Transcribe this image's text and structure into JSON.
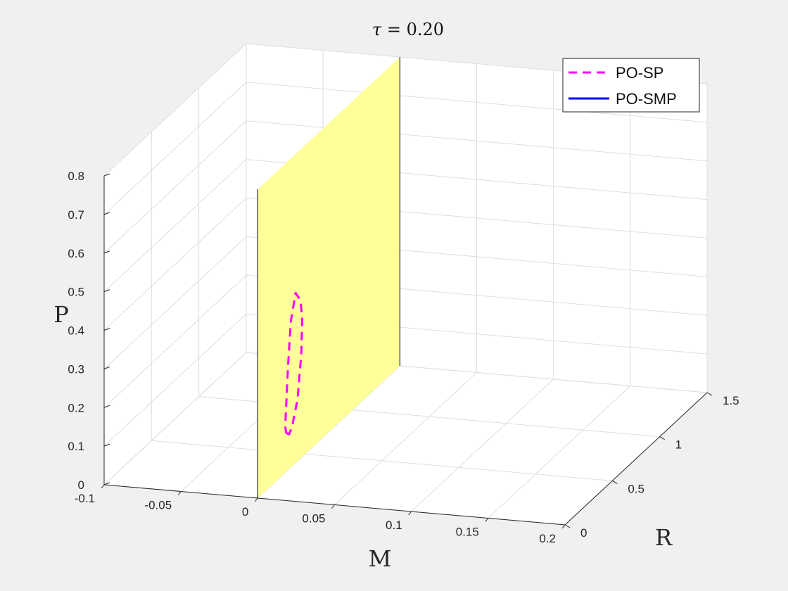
{
  "chart_data": {
    "type": "line3d",
    "title_symbol": "τ",
    "title_value": " = 0.20",
    "xlabel": "M",
    "ylabel": "R",
    "zlabel": "P",
    "xlim": [
      -0.1,
      0.2
    ],
    "ylim": [
      0,
      1.5
    ],
    "zlim": [
      0,
      0.8
    ],
    "xticks": [
      -0.1,
      -0.05,
      0,
      0.05,
      0.1,
      0.15,
      0.2
    ],
    "xtick_labels": [
      "-0.1",
      "-0.05",
      "0",
      "0.05",
      "0.1",
      "0.15",
      "0.2"
    ],
    "yticks": [
      0,
      0.5,
      1,
      1.5
    ],
    "ytick_labels": [
      "0",
      "0.5",
      "1",
      "1.5"
    ],
    "zticks": [
      0,
      0.1,
      0.2,
      0.3,
      0.4,
      0.5,
      0.6,
      0.7,
      0.8
    ],
    "ztick_labels": [
      "0",
      "0.1",
      "0.2",
      "0.3",
      "0.4",
      "0.5",
      "0.6",
      "0.7",
      "0.8"
    ],
    "grid": true,
    "legend_position": "top-right",
    "plane": {
      "M": 0,
      "R": [
        0,
        1.5
      ],
      "P": [
        0,
        0.8
      ],
      "color": "#ffff99"
    },
    "series": [
      {
        "name": "PO-SP",
        "style": "dashed",
        "color": "#ff00ff",
        "M": [
          0,
          0,
          0,
          0,
          0,
          0,
          0,
          0,
          0,
          0,
          0,
          0,
          0
        ],
        "R": [
          0.3,
          0.33,
          0.36,
          0.42,
          0.46,
          0.47,
          0.45,
          0.4,
          0.35,
          0.32,
          0.3,
          0.29,
          0.3
        ],
        "P": [
          0.1,
          0.09,
          0.1,
          0.16,
          0.27,
          0.36,
          0.41,
          0.44,
          0.38,
          0.27,
          0.17,
          0.12,
          0.1
        ]
      },
      {
        "name": "PO-SMP",
        "style": "solid",
        "color": "#0000ff",
        "M": [],
        "R": [],
        "P": []
      }
    ]
  }
}
